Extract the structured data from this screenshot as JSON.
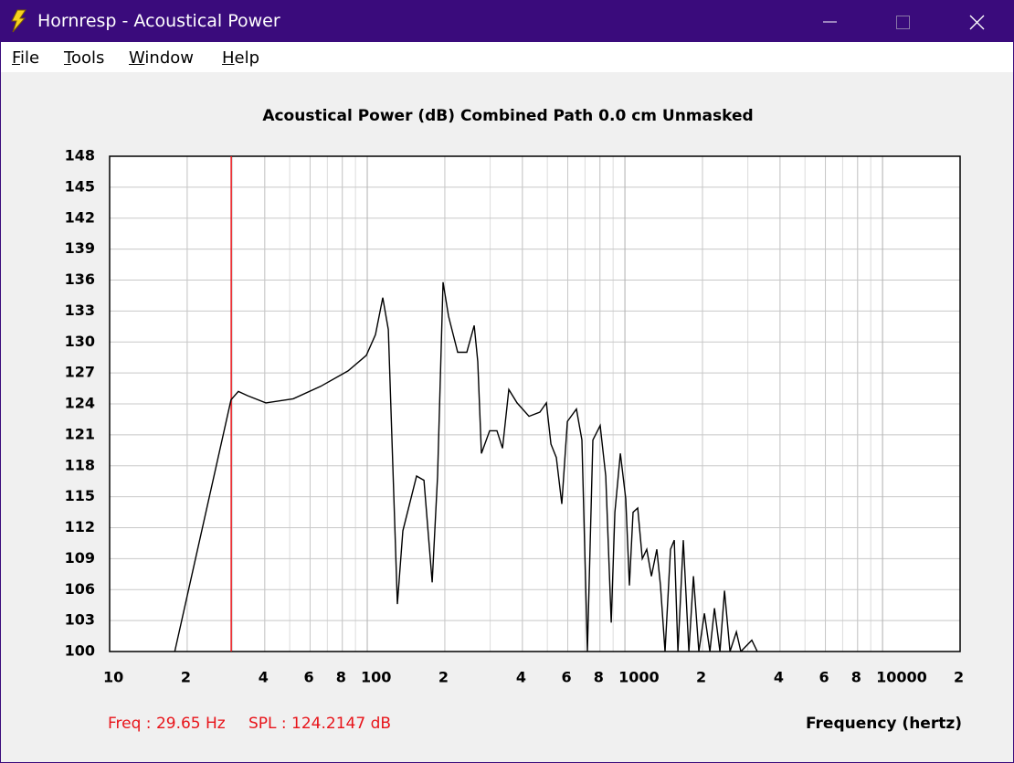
{
  "window": {
    "title": "Hornresp - Acoustical Power",
    "menu": [
      "File",
      "Tools",
      "Window",
      "Help"
    ]
  },
  "chart_data": {
    "type": "line",
    "title": "Acoustical Power (dB)   Combined   Path 0.0 cm   Unmasked",
    "x_label": "Frequency (hertz)",
    "x_scale": "log",
    "grid": true,
    "xlim": [
      10,
      20000
    ],
    "ylim": [
      100,
      148
    ],
    "xticks": [
      10,
      {
        "value": 20,
        "label": "2"
      },
      {
        "value": 40,
        "label": "4"
      },
      {
        "value": 60,
        "label": "6"
      },
      {
        "value": 80,
        "label": "8"
      },
      100,
      {
        "value": 200,
        "label": "2"
      },
      {
        "value": 400,
        "label": "4"
      },
      {
        "value": 600,
        "label": "6"
      },
      {
        "value": 800,
        "label": "8"
      },
      1000,
      {
        "value": 2000,
        "label": "2"
      },
      {
        "value": 4000,
        "label": "4"
      },
      {
        "value": 6000,
        "label": "6"
      },
      {
        "value": 8000,
        "label": "8"
      },
      10000,
      {
        "value": 20000,
        "label": "2"
      }
    ],
    "yticks": [
      100,
      103,
      106,
      109,
      112,
      115,
      118,
      121,
      124,
      127,
      130,
      133,
      136,
      139,
      142,
      145,
      148
    ],
    "cursor": {
      "x": 29.65,
      "color": "#e8141a",
      "freq_label": "Freq : 29.65 Hz",
      "spl_label": "SPL : 124.2147 dB"
    },
    "series": [
      {
        "name": "Acoustical Power",
        "color": "#000000",
        "x": [
          17.9,
          29.6,
          31.6,
          34.3,
          40.4,
          51.6,
          65.9,
          84.2,
          99.2,
          107.6,
          114.9,
          120.7,
          130.9,
          137.4,
          155.4,
          166,
          178.6,
          187.5,
          196.9,
          206.8,
          224.4,
          243.5,
          260,
          268.5,
          277.4,
          298.5,
          318.8,
          334.9,
          354.5,
          381.5,
          424.3,
          467.8,
          495.5,
          516.3,
          542,
          569,
          597.9,
          648.6,
          681,
          715.4,
          751,
          802,
          842.5,
          885,
          914,
          960,
          1008,
          1041,
          1076,
          1121,
          1168,
          1216,
          1267,
          1330,
          1374,
          1431,
          1503,
          1554,
          1606,
          1686,
          1771,
          1845,
          1937,
          2035,
          2138,
          2226,
          2338,
          2435,
          2557,
          2708,
          2818,
          3110,
          3266
        ],
        "values": [
          100,
          124.4,
          125.2,
          124.8,
          124.1,
          124.5,
          125.7,
          127.2,
          128.7,
          130.7,
          134.3,
          131.2,
          104.6,
          111.7,
          117,
          116.6,
          106.7,
          117,
          135.8,
          132.5,
          129,
          129,
          131.6,
          128.1,
          119.2,
          121.4,
          121.4,
          119.7,
          125.4,
          124.1,
          122.8,
          123.2,
          124.1,
          120.1,
          118.8,
          114.3,
          122.3,
          123.5,
          120.5,
          100,
          120.5,
          121.9,
          117,
          102.8,
          113.5,
          119.2,
          114.8,
          106.4,
          113.5,
          113.9,
          109,
          109.9,
          107.3,
          109.9,
          106.4,
          100,
          109.9,
          110.8,
          100,
          110.8,
          100,
          107.3,
          100,
          103.7,
          100,
          104.2,
          100,
          105.9,
          100,
          101.9,
          100,
          101.1,
          100
        ]
      }
    ]
  }
}
